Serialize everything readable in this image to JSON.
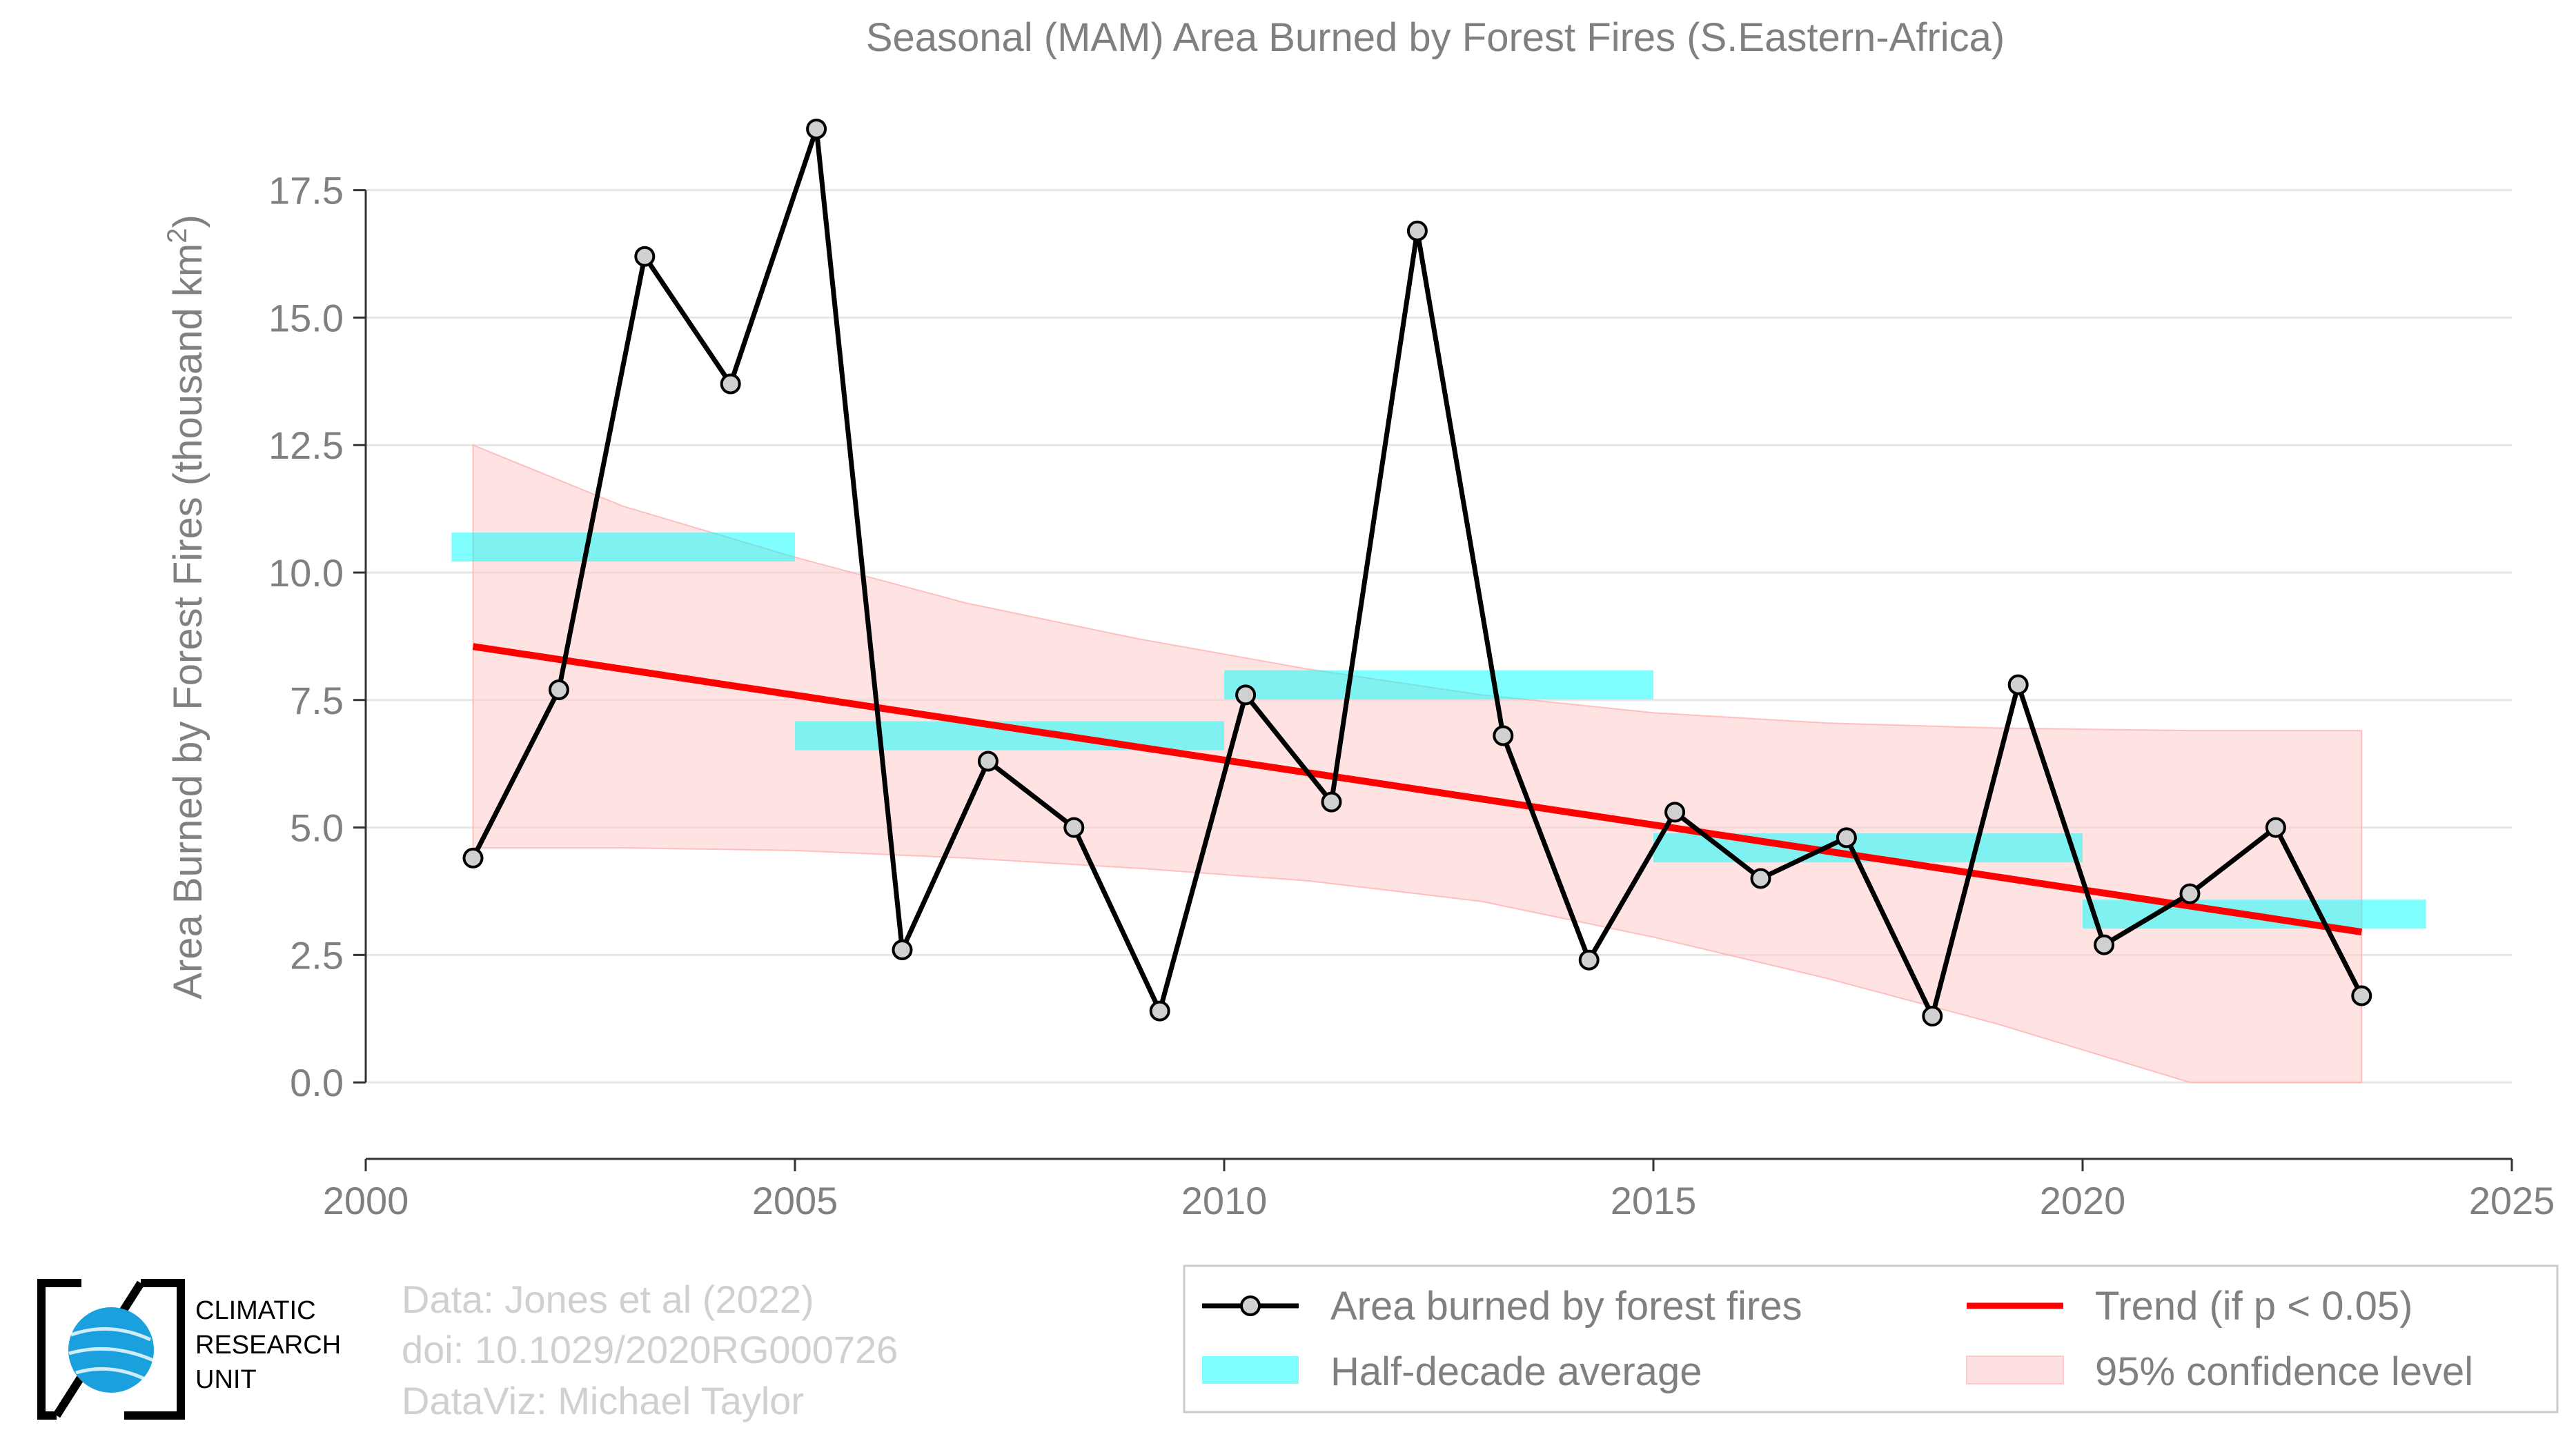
{
  "chart_data": {
    "type": "line",
    "title": "Seasonal (MAM) Area Burned by Forest Fires (S.Eastern-Africa)",
    "ylabel": "Area Burned by Forest Fires (thousand km",
    "ylabel_sup": "2",
    "ylabel_end": ")",
    "xlim": [
      2000,
      2025
    ],
    "ylim": [
      -1.5,
      19.2
    ],
    "xticks": [
      2000,
      2005,
      2010,
      2015,
      2020,
      2025
    ],
    "yticks": [
      0.0,
      2.5,
      5.0,
      7.5,
      10.0,
      12.5,
      15.0,
      17.5
    ],
    "ytick_labels": [
      "0.0",
      "2.5",
      "5.0",
      "7.5",
      "10.0",
      "12.5",
      "15.0",
      "17.5"
    ],
    "grid": "horizontal",
    "series": [
      {
        "name": "Area burned by forest fires",
        "color": "#000000",
        "x": [
          2001.25,
          2002.25,
          2003.25,
          2004.25,
          2005.25,
          2006.25,
          2007.25,
          2008.25,
          2009.25,
          2010.25,
          2011.25,
          2012.25,
          2013.25,
          2014.25,
          2015.25,
          2016.25,
          2017.25,
          2018.25,
          2019.25,
          2020.25,
          2021.25,
          2022.25,
          2023.25
        ],
        "values": [
          4.4,
          7.7,
          16.2,
          13.7,
          18.7,
          2.6,
          6.3,
          5.0,
          1.4,
          7.6,
          5.5,
          16.7,
          6.8,
          2.4,
          5.3,
          4.0,
          4.8,
          1.3,
          7.8,
          2.7,
          3.7,
          5.0,
          1.7
        ]
      }
    ],
    "half_decade_average": {
      "name": "Half-decade average",
      "color": "#00ffff",
      "segments": [
        {
          "x0": 2001.0,
          "x1": 2005.0,
          "value": 10.5
        },
        {
          "x0": 2005.0,
          "x1": 2010.0,
          "value": 6.8
        },
        {
          "x0": 2010.0,
          "x1": 2015.0,
          "value": 7.8
        },
        {
          "x0": 2015.0,
          "x1": 2020.0,
          "value": 4.6
        },
        {
          "x0": 2020.0,
          "x1": 2024.0,
          "value": 3.3
        }
      ]
    },
    "trend": {
      "name": "Trend (if p < 0.05)",
      "color": "#ff0000",
      "x0": 2001.25,
      "y0": 8.55,
      "x1": 2023.25,
      "y1": 2.95
    },
    "confidence": {
      "name": "95% confidence level",
      "color": "#ffcccc",
      "x": [
        2001.25,
        2003.0,
        2005.0,
        2007.0,
        2009.0,
        2011.0,
        2013.0,
        2015.0,
        2017.0,
        2019.0,
        2021.25,
        2023.25
      ],
      "upper": [
        12.5,
        11.3,
        10.3,
        9.4,
        8.7,
        8.1,
        7.6,
        7.25,
        7.05,
        6.95,
        6.9,
        6.9
      ],
      "lower": [
        4.6,
        4.6,
        4.55,
        4.4,
        4.2,
        3.95,
        3.55,
        2.85,
        2.05,
        1.15,
        0.0,
        0.0
      ]
    },
    "legend_placement": "bottom-right"
  },
  "legend": {
    "line_label": "Area burned by forest fires",
    "trend_label": "Trend (if p < 0.05)",
    "avg_label": "Half-decade average",
    "ci_label": "95% confidence level"
  },
  "credits": {
    "line1": "Data: Jones et al (2022)",
    "line2": "doi: 10.1029/2020RG000726",
    "line3": "DataViz: Michael Taylor"
  },
  "logo": {
    "line1": "CLIMATIC",
    "line2": "RESEARCH",
    "line3": "UNIT"
  }
}
